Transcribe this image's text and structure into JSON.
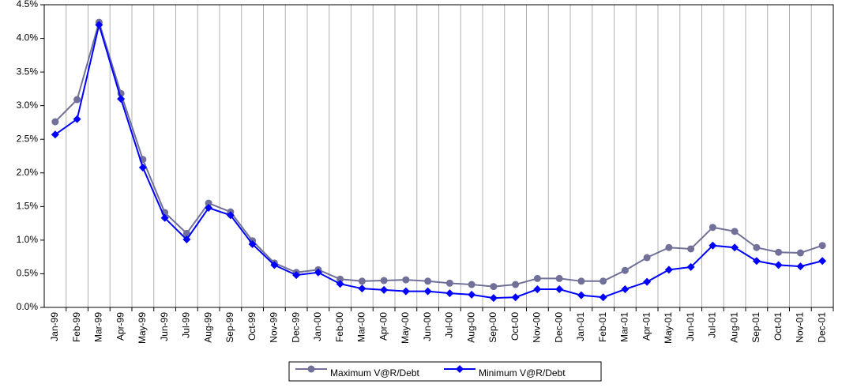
{
  "chart_data": {
    "type": "line",
    "categories": [
      "Jan-99",
      "Feb-99",
      "Mar-99",
      "Apr-99",
      "May-99",
      "Jun-99",
      "Jul-99",
      "Aug-99",
      "Sep-99",
      "Oct-99",
      "Nov-99",
      "Dec-99",
      "Jan-00",
      "Feb-00",
      "Mar-00",
      "Apr-00",
      "May-00",
      "Jun-00",
      "Jul-00",
      "Aug-00",
      "Sep-00",
      "Oct-00",
      "Nov-00",
      "Dec-00",
      "Jan-01",
      "Feb-01",
      "Mar-01",
      "Apr-01",
      "May-01",
      "Jun-01",
      "Jul-01",
      "Aug-01",
      "Sep-01",
      "Oct-01",
      "Nov-01",
      "Dec-01"
    ],
    "series": [
      {
        "name": "Maximum V@R/Debt",
        "color": "#707098",
        "marker": "circle",
        "values": [
          2.76,
          3.09,
          4.24,
          3.18,
          2.2,
          1.41,
          1.1,
          1.55,
          1.42,
          0.99,
          0.66,
          0.52,
          0.56,
          0.42,
          0.39,
          0.4,
          0.41,
          0.39,
          0.36,
          0.34,
          0.31,
          0.34,
          0.43,
          0.43,
          0.39,
          0.39,
          0.55,
          0.74,
          0.89,
          0.87,
          1.19,
          1.13,
          0.89,
          0.82,
          0.81,
          0.92
        ]
      },
      {
        "name": "Minimum V@R/Debt",
        "color": "#0000ff",
        "marker": "diamond",
        "values": [
          2.57,
          2.8,
          4.2,
          3.1,
          2.08,
          1.33,
          1.01,
          1.48,
          1.37,
          0.94,
          0.63,
          0.48,
          0.52,
          0.35,
          0.28,
          0.26,
          0.24,
          0.24,
          0.21,
          0.19,
          0.14,
          0.15,
          0.27,
          0.27,
          0.18,
          0.15,
          0.27,
          0.38,
          0.56,
          0.6,
          0.92,
          0.89,
          0.69,
          0.63,
          0.61,
          0.69
        ]
      }
    ],
    "ylim": [
      0,
      4.5
    ],
    "yticks": [
      {
        "value": 0,
        "label": "0.0%"
      },
      {
        "value": 0.5,
        "label": "0.5%"
      },
      {
        "value": 1,
        "label": "1.0%"
      },
      {
        "value": 1.5,
        "label": "1.5%"
      },
      {
        "value": 2,
        "label": "2.0%"
      },
      {
        "value": 2.5,
        "label": "2.5%"
      },
      {
        "value": 3,
        "label": "3.0%"
      },
      {
        "value": 3.5,
        "label": "3.5%"
      },
      {
        "value": 4,
        "label": "4.0%"
      },
      {
        "value": 4.5,
        "label": "4.5%"
      }
    ],
    "grid": true,
    "legend": "bottom"
  }
}
